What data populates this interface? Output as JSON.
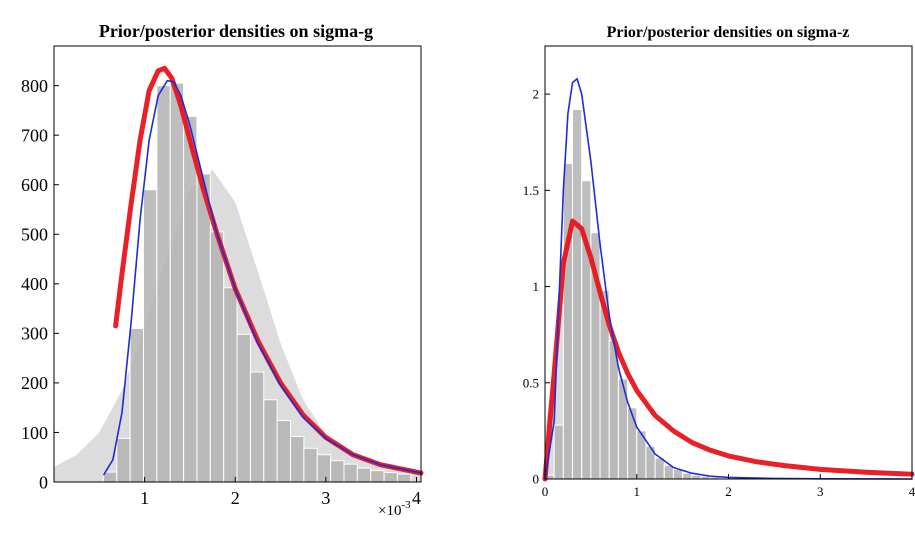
{
  "chart_data": [
    {
      "type": "histogram-with-densities",
      "title": "Prior/posterior densities on sigma-g",
      "x_exponent_label": "× 10^-3",
      "x_exponent_base": "×10",
      "x_exponent_power": "-3",
      "xlim": [
        0.0,
        4.05
      ],
      "ylim": [
        0,
        880
      ],
      "xticks": [
        1,
        2,
        3,
        4
      ],
      "xtick_labels": [
        "1",
        "2",
        "3",
        "4"
      ],
      "yticks": [
        0,
        100,
        200,
        300,
        400,
        500,
        600,
        700,
        800
      ],
      "ytick_labels": [
        "0",
        "100",
        "200",
        "300",
        "400",
        "500",
        "600",
        "700",
        "800"
      ],
      "colors": {
        "histogram": "#b3b3b3",
        "prior_area": "#dcdcdc",
        "posterior_red": "#e8141b",
        "posterior_blue": "#1a2fd6"
      },
      "histogram": {
        "bin_start": 0.545,
        "bin_width": 0.1475,
        "values": [
          20,
          88,
          310,
          590,
          800,
          805,
          738,
          622,
          505,
          392,
          298,
          222,
          166,
          124,
          92,
          68,
          55,
          43,
          36,
          28,
          23,
          19,
          16
        ]
      },
      "prior_area": {
        "x": [
          0,
          0.25,
          0.5,
          0.75,
          1.0,
          1.25,
          1.5,
          1.75,
          2.0,
          2.25,
          2.5,
          2.75,
          3.0,
          3.25,
          3.5,
          3.75,
          4.05
        ],
        "y": [
          30,
          55,
          100,
          185,
          310,
          460,
          590,
          630,
          565,
          425,
          280,
          165,
          95,
          55,
          38,
          28,
          20
        ]
      },
      "series": [
        {
          "name": "",
          "color": "#e8141b",
          "x": [
            0.68,
            0.75,
            0.85,
            0.95,
            1.05,
            1.15,
            1.22,
            1.3,
            1.4,
            1.5,
            1.65,
            1.8,
            2.0,
            2.25,
            2.5,
            2.75,
            3.0,
            3.3,
            3.6,
            4.05
          ],
          "y": [
            315,
            420,
            560,
            690,
            790,
            830,
            835,
            815,
            760,
            690,
            590,
            500,
            390,
            285,
            200,
            135,
            90,
            55,
            35,
            18
          ]
        },
        {
          "name": "",
          "color": "#1a2fd6",
          "x": [
            0.55,
            0.65,
            0.75,
            0.85,
            0.95,
            1.05,
            1.15,
            1.25,
            1.32,
            1.4,
            1.5,
            1.65,
            1.8,
            2.0,
            2.25,
            2.5,
            2.75,
            3.0,
            3.3,
            3.6,
            4.05
          ],
          "y": [
            15,
            45,
            140,
            320,
            530,
            690,
            780,
            810,
            808,
            780,
            720,
            610,
            500,
            390,
            280,
            195,
            130,
            88,
            55,
            35,
            18
          ]
        }
      ]
    },
    {
      "type": "histogram-with-densities",
      "title": "Prior/posterior densities on sigma-z",
      "xlim": [
        0.0,
        4.0
      ],
      "ylim": [
        0,
        2.25
      ],
      "xticks": [
        0,
        1,
        2,
        3,
        4
      ],
      "xtick_labels": [
        "0",
        "1",
        "2",
        "3",
        "4"
      ],
      "yticks": [
        0,
        0.5,
        1,
        1.5,
        2
      ],
      "ytick_labels": [
        "0",
        "0.5",
        "1",
        "1.5",
        "2"
      ],
      "colors": {
        "histogram": "#b3b3b3",
        "prior_area": "#dcdcdc",
        "posterior_red": "#e8141b",
        "posterior_blue": "#1a2fd6"
      },
      "histogram": {
        "bin_start": 0.0,
        "bin_width": 0.1,
        "values": [
          0.02,
          0.28,
          1.64,
          1.92,
          1.55,
          1.28,
          0.98,
          0.72,
          0.52,
          0.37,
          0.25,
          0.17,
          0.11,
          0.07,
          0.05,
          0.03,
          0.02,
          0.015,
          0.01
        ]
      },
      "prior_area": {
        "x": [
          0,
          0.1,
          0.2,
          0.3,
          0.4,
          0.5,
          0.6,
          0.7,
          0.8,
          0.9,
          1.0,
          1.1,
          1.2,
          1.35,
          1.5
        ],
        "y": [
          0.25,
          0.6,
          1.0,
          1.28,
          1.37,
          1.25,
          1.05,
          0.82,
          0.6,
          0.42,
          0.27,
          0.17,
          0.1,
          0.04,
          0.01
        ]
      },
      "series": [
        {
          "name": "",
          "color": "#e8141b",
          "x": [
            0,
            0.1,
            0.2,
            0.3,
            0.4,
            0.5,
            0.6,
            0.7,
            0.8,
            0.9,
            1.0,
            1.2,
            1.4,
            1.6,
            1.8,
            2.0,
            2.3,
            2.6,
            3.0,
            3.5,
            4.0
          ],
          "y": [
            0.0,
            0.55,
            1.12,
            1.34,
            1.3,
            1.15,
            0.97,
            0.8,
            0.66,
            0.55,
            0.46,
            0.33,
            0.25,
            0.19,
            0.15,
            0.12,
            0.09,
            0.07,
            0.05,
            0.035,
            0.025
          ]
        },
        {
          "name": "",
          "color": "#1a2fd6",
          "x": [
            0,
            0.1,
            0.2,
            0.25,
            0.3,
            0.35,
            0.4,
            0.5,
            0.6,
            0.7,
            0.8,
            0.9,
            1.0,
            1.2,
            1.4,
            1.6,
            1.8,
            2.0,
            2.5,
            3.0,
            4.0
          ],
          "y": [
            0.0,
            0.3,
            1.5,
            1.9,
            2.06,
            2.08,
            2.0,
            1.65,
            1.22,
            0.85,
            0.58,
            0.4,
            0.27,
            0.13,
            0.06,
            0.03,
            0.015,
            0.008,
            0.003,
            0.001,
            0.0
          ]
        }
      ]
    }
  ]
}
